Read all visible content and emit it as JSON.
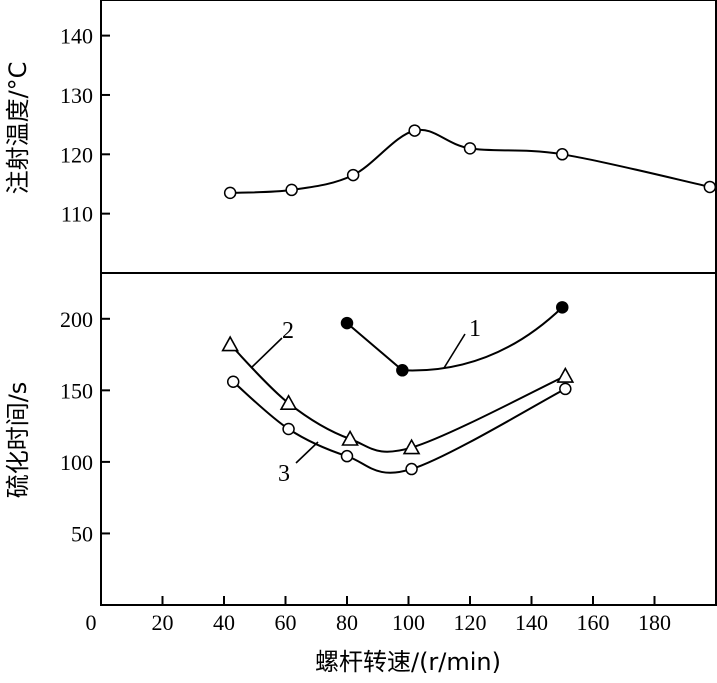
{
  "chart_data": [
    {
      "type": "line",
      "panel": "top",
      "ylabel": "注射温度/°C",
      "xlabel": "",
      "xlim": [
        0,
        200
      ],
      "ylim": [
        100,
        146
      ],
      "yticks": [
        110,
        120,
        130,
        140
      ],
      "series": [
        {
          "marker": "open-circle",
          "x": [
            42,
            62,
            82,
            102,
            120,
            150,
            198
          ],
          "y": [
            113.5,
            114,
            116.5,
            124,
            121,
            120,
            114.5
          ]
        }
      ]
    },
    {
      "type": "line",
      "panel": "bottom",
      "ylabel": "硫化时间/s",
      "xlabel": "螺杆转速/(r/min)",
      "xlim": [
        0,
        200
      ],
      "ylim": [
        0,
        232
      ],
      "yticks": [
        50,
        100,
        150,
        200
      ],
      "xticks": [
        0,
        20,
        40,
        60,
        80,
        100,
        120,
        140,
        160,
        180
      ],
      "xtick_labels": [
        "0",
        "20",
        "40",
        "60",
        "80",
        "100",
        "120",
        "140",
        "160",
        "180"
      ],
      "series": [
        {
          "label": "1",
          "marker": "filled-circle",
          "x": [
            80,
            98,
            150
          ],
          "y": [
            197,
            164,
            208
          ]
        },
        {
          "label": "2",
          "marker": "open-triangle",
          "x": [
            42,
            61,
            81,
            101,
            151
          ],
          "y": [
            182,
            141,
            116,
            110,
            160
          ]
        },
        {
          "label": "3",
          "marker": "open-circle",
          "x": [
            43,
            61,
            80,
            101,
            151
          ],
          "y": [
            156,
            123,
            104,
            95,
            151
          ]
        }
      ]
    }
  ]
}
